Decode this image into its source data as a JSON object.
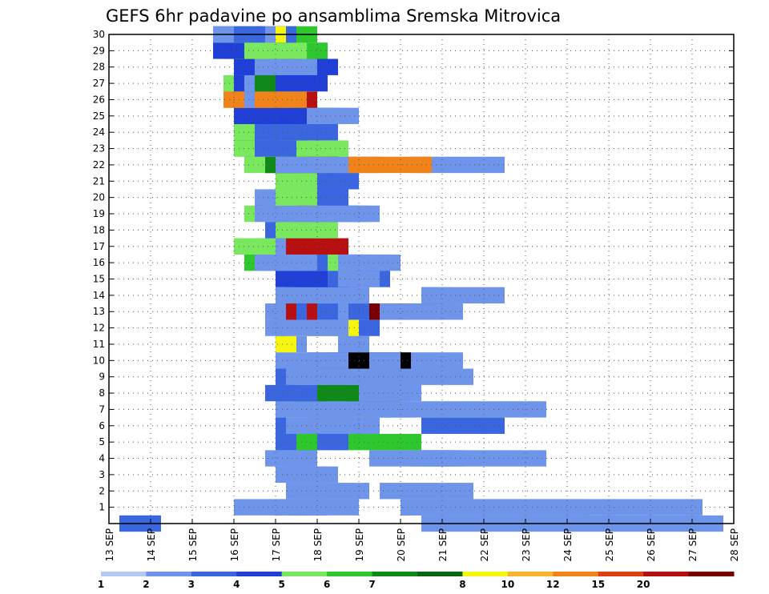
{
  "chart_data": {
    "type": "heatmap",
    "title": "GEFS 6hr padavine po ansamblima Sremska Mitrovica",
    "xlabel": "",
    "ylabel": "",
    "x_tick_labels": [
      "13 SEP",
      "14 SEP",
      "15 SEP",
      "16 SEP",
      "17 SEP",
      "18 SEP",
      "19 SEP",
      "20 SEP",
      "21 SEP",
      "22 SEP",
      "23 SEP",
      "24 SEP",
      "25 SEP",
      "26 SEP",
      "27 SEP",
      "28 SEP"
    ],
    "x_range_days": [
      13,
      28
    ],
    "y_tick_labels": [
      1,
      2,
      3,
      4,
      5,
      6,
      7,
      8,
      9,
      10,
      11,
      12,
      13,
      14,
      15,
      16,
      17,
      18,
      19,
      20,
      21,
      22,
      23,
      24,
      25,
      26,
      27,
      28,
      29,
      30
    ],
    "y_range": [
      0,
      30
    ],
    "grid": true,
    "steps_per_day": 4,
    "colorbar": {
      "labels": [
        "1",
        "2",
        "3",
        "4",
        "5",
        "6",
        "7",
        "8",
        "10",
        "12",
        "15",
        "20"
      ],
      "colors": [
        "#b3c8f2",
        "#6e95ea",
        "#3a66e0",
        "#1f3fd6",
        "#7ae85e",
        "#2ec72e",
        "#0f8a1a",
        "#0a6410",
        "#f5f50f",
        "#f7b52e",
        "#f0841a",
        "#e04010",
        "#b81010",
        "#7a0000"
      ]
    },
    "legend_placement": "bottom",
    "cells": [
      [
        0,
        1,
        4,
        2
      ],
      [
        0,
        30,
        29,
        1
      ],
      [
        1,
        12,
        9,
        1
      ],
      [
        1,
        17,
        1,
        5
      ],
      [
        1,
        16,
        5,
        1
      ],
      [
        1,
        18,
        6,
        1
      ],
      [
        1,
        28,
        1,
        2
      ],
      [
        1,
        29,
        17,
        1
      ],
      [
        1,
        28,
        29,
        1
      ],
      [
        2,
        17,
        8,
        1
      ],
      [
        2,
        26,
        9,
        1
      ],
      [
        3,
        16,
        2,
        1
      ],
      [
        3,
        17,
        4,
        1
      ],
      [
        3,
        19,
        3,
        1
      ],
      [
        3,
        17,
        2,
        1
      ],
      [
        4,
        15,
        4,
        1
      ],
      [
        4,
        16,
        4,
        1
      ],
      [
        4,
        29,
        4,
        1
      ],
      [
        4,
        30,
        4,
        1
      ],
      [
        4,
        28,
        14,
        1
      ],
      [
        4,
        25,
        3,
        1
      ],
      [
        5,
        21,
        9,
        5
      ],
      [
        5,
        16,
        7,
        2
      ],
      [
        5,
        18,
        2,
        5
      ],
      [
        6,
        16,
        2,
        1
      ],
      [
        6,
        18,
        8,
        1
      ],
      [
        6,
        30,
        8,
        2
      ],
      [
        6,
        16,
        1,
        2
      ],
      [
        6,
        19,
        2,
        1
      ],
      [
        7,
        21,
        4,
        5
      ],
      [
        7,
        20,
        7,
        5
      ],
      [
        7,
        18,
        6,
        1
      ],
      [
        7,
        19,
        4,
        1
      ],
      [
        7,
        20,
        9,
        1
      ],
      [
        7,
        25,
        17,
        1
      ],
      [
        7,
        16,
        9,
        1
      ],
      [
        8,
        22,
        3,
        1
      ],
      [
        8,
        18,
        3,
        6
      ],
      [
        8,
        16,
        3,
        7
      ],
      [
        8,
        19,
        5,
        6
      ],
      [
        8,
        23,
        5,
        6
      ],
      [
        8,
        24,
        6,
        1
      ],
      [
        8,
        15,
        5,
        2
      ],
      [
        9,
        21,
        2,
        1
      ],
      [
        9,
        20,
        9,
        12
      ],
      [
        9,
        16,
        5,
        1
      ],
      [
        9,
        24,
        11,
        1
      ],
      [
        9,
        16,
        2,
        2
      ],
      [
        9,
        18,
        12,
        1
      ],
      [
        9,
        23,
        7,
        1
      ],
      [
        9,
        17,
        9,
        1
      ],
      [
        10,
        20,
        9,
        14
      ],
      [
        10,
        19,
        4,
        2
      ],
      [
        10,
        18,
        3,
        10
      ],
      [
        10,
        29,
        5,
        1
      ],
      [
        10,
        16,
        7,
        1
      ],
      [
        10,
        25,
        3,
        1
      ],
      [
        11,
        22,
        3,
        1
      ],
      [
        11,
        16,
        3,
        8
      ],
      [
        11,
        18,
        1,
        1
      ],
      [
        12,
        19,
        4,
        7
      ],
      [
        12,
        20,
        6,
        2
      ],
      [
        12,
        17,
        7,
        8
      ],
      [
        12,
        16,
        1,
        1
      ],
      [
        12,
        15,
        8,
        1
      ],
      [
        13,
        16,
        9,
        2
      ],
      [
        13,
        15,
        2,
        1
      ],
      [
        13,
        17,
        3,
        12
      ],
      [
        13,
        18,
        1,
        2
      ],
      [
        13,
        22,
        1,
        1
      ],
      [
        13,
        28,
        4,
        13
      ],
      [
        13,
        25,
        4,
        13
      ],
      [
        13,
        26,
        8,
        1
      ],
      [
        14,
        16,
        9,
        1
      ],
      [
        14,
        18,
        1,
        1
      ],
      [
        14,
        30,
        3,
        1
      ],
      [
        14,
        30,
        8,
        1
      ],
      [
        15,
        19,
        2,
        1
      ],
      [
        15,
        18,
        9,
        2
      ],
      [
        15,
        17,
        6,
        3
      ],
      [
        15,
        16,
        8,
        3
      ],
      [
        15,
        23,
        3,
        1
      ],
      [
        15,
        22,
        3,
        1
      ],
      [
        15,
        21,
        1,
        2
      ],
      [
        16,
        13,
        11,
        5
      ],
      [
        16,
        14,
        12,
        1
      ],
      [
        16,
        15,
        10,
        1
      ],
      [
        16,
        17,
        6,
        1
      ],
      [
        16,
        19,
        8,
        2
      ],
      [
        16,
        21,
        2,
        4
      ],
      [
        16,
        22,
        6,
        1
      ],
      [
        16,
        16,
        4,
        1
      ],
      [
        17,
        14,
        4,
        1
      ],
      [
        17,
        17,
        2,
        2
      ],
      [
        17,
        12,
        3,
        4
      ],
      [
        17,
        15,
        3,
        4
      ],
      [
        17,
        16,
        5,
        1
      ],
      [
        17,
        17,
        5,
        4
      ],
      [
        17,
        17,
        6,
        12
      ],
      [
        18,
        18,
        3,
        1
      ],
      [
        18,
        16,
        1,
        1
      ],
      [
        18,
        20,
        2,
        4
      ],
      [
        18,
        15,
        3,
        2
      ],
      [
        18,
        17,
        4,
        1
      ],
      [
        18,
        16,
        6,
        4
      ],
      [
        19,
        21,
        2,
        2
      ],
      [
        19,
        19,
        1,
        1
      ],
      [
        19,
        15,
        3,
        1
      ],
      [
        19,
        13,
        7,
        4
      ],
      [
        19,
        15,
        2,
        1
      ],
      [
        19,
        22,
        4,
        1
      ],
      [
        19,
        17,
        8,
        4
      ],
      [
        19,
        18,
        6,
        2
      ],
      [
        19,
        16,
        10,
        1
      ],
      [
        19,
        14,
        11,
        1
      ],
      [
        20,
        15,
        5,
        12
      ],
      [
        20,
        14,
        5,
        12
      ],
      [
        20,
        15,
        6,
        4
      ],
      [
        20,
        14,
        3,
        1
      ],
      [
        20,
        16,
        2,
        4
      ],
      [
        20,
        20,
        3,
        2
      ],
      [
        21,
        16,
        6,
        4
      ],
      [
        21,
        21,
        3,
        1
      ],
      [
        21,
        20,
        4,
        2
      ],
      [
        21,
        22,
        2,
        2
      ],
      [
        22,
        15,
        3,
        1
      ],
      [
        22,
        15,
        7,
        13
      ],
      [
        22,
        13,
        3,
        4
      ],
      [
        22,
        15,
        5,
        6
      ],
      [
        22,
        16,
        7,
        1
      ],
      [
        22,
        17,
        9,
        1
      ],
      [
        22,
        29,
        9,
        1
      ],
      [
        22,
        23,
        8,
        10
      ],
      [
        23,
        14,
        8,
        14
      ],
      [
        23,
        14,
        7,
        11
      ],
      [
        23,
        13,
        6,
        5
      ],
      [
        23,
        14,
        4,
        5
      ],
      [
        23,
        14,
        3,
        8
      ],
      [
        23,
        14,
        9,
        4
      ],
      [
        23,
        13,
        5,
        2
      ],
      [
        23,
        12,
        2,
        4
      ],
      [
        24,
        14,
        3,
        1
      ],
      [
        24,
        13,
        5,
        12
      ],
      [
        24,
        13,
        1,
        4
      ],
      [
        24,
        12,
        4,
        3
      ],
      [
        24,
        12,
        7,
        7
      ],
      [
        24,
        12,
        6,
        4
      ],
      [
        24,
        14,
        2,
        1
      ],
      [
        24,
        14,
        8,
        2
      ],
      [
        25,
        12,
        3,
        4
      ],
      [
        25,
        15,
        8,
        1
      ],
      [
        25,
        13,
        6,
        5
      ],
      [
        25,
        15,
        7,
        6
      ],
      [
        25,
        16,
        3,
        5
      ],
      [
        25,
        16,
        2,
        4
      ],
      [
        25,
        15,
        9,
        1
      ],
      [
        25,
        12,
        7,
        3
      ],
      [
        26,
        12,
        3,
        12
      ],
      [
        26,
        13,
        3,
        5
      ],
      [
        26,
        13,
        4,
        10
      ],
      [
        26,
        12,
        8,
        12
      ],
      [
        26,
        11,
        3,
        9
      ],
      [
        26,
        11,
        7,
        10
      ],
      [
        26,
        11,
        8,
        10
      ],
      [
        26,
        13,
        1,
        1
      ],
      [
        27,
        14,
        4,
        1
      ],
      [
        27,
        14,
        5,
        1
      ],
      [
        27,
        14,
        1,
        2
      ],
      [
        27,
        11,
        3,
        4
      ],
      [
        27,
        12,
        8,
        8
      ],
      [
        27,
        12,
        9,
        3
      ],
      [
        27,
        13,
        3,
        1
      ],
      [
        27,
        14,
        2,
        6
      ],
      [
        28,
        14,
        2,
        1
      ],
      [
        28,
        13,
        5,
        1
      ],
      [
        28,
        13,
        8,
        6
      ],
      [
        28,
        12,
        7,
        1
      ],
      [
        28,
        13,
        1,
        2
      ],
      [
        28,
        12,
        9,
        3
      ],
      [
        28,
        14,
        8,
        3
      ],
      [
        28,
        14,
        6,
        1
      ],
      [
        29,
        13,
        3,
        4
      ],
      [
        29,
        13,
        5,
        11
      ],
      [
        29,
        12,
        4,
        4
      ],
      [
        29,
        11,
        2,
        5
      ],
      [
        29,
        11,
        6,
        9
      ],
      [
        29,
        12,
        9,
        5
      ],
      [
        29,
        11,
        8,
        4
      ],
      [
        29,
        10,
        3,
        3
      ],
      [
        30,
        12,
        6,
        2
      ],
      [
        30,
        12,
        8,
        5
      ],
      [
        30,
        14,
        4,
        2
      ],
      [
        30,
        10,
        7,
        8
      ],
      [
        30,
        10,
        6,
        1
      ],
      [
        30,
        11,
        3,
        4
      ],
      [
        30,
        10,
        5,
        2
      ],
      [
        30,
        10,
        2,
        1
      ]
    ]
  }
}
